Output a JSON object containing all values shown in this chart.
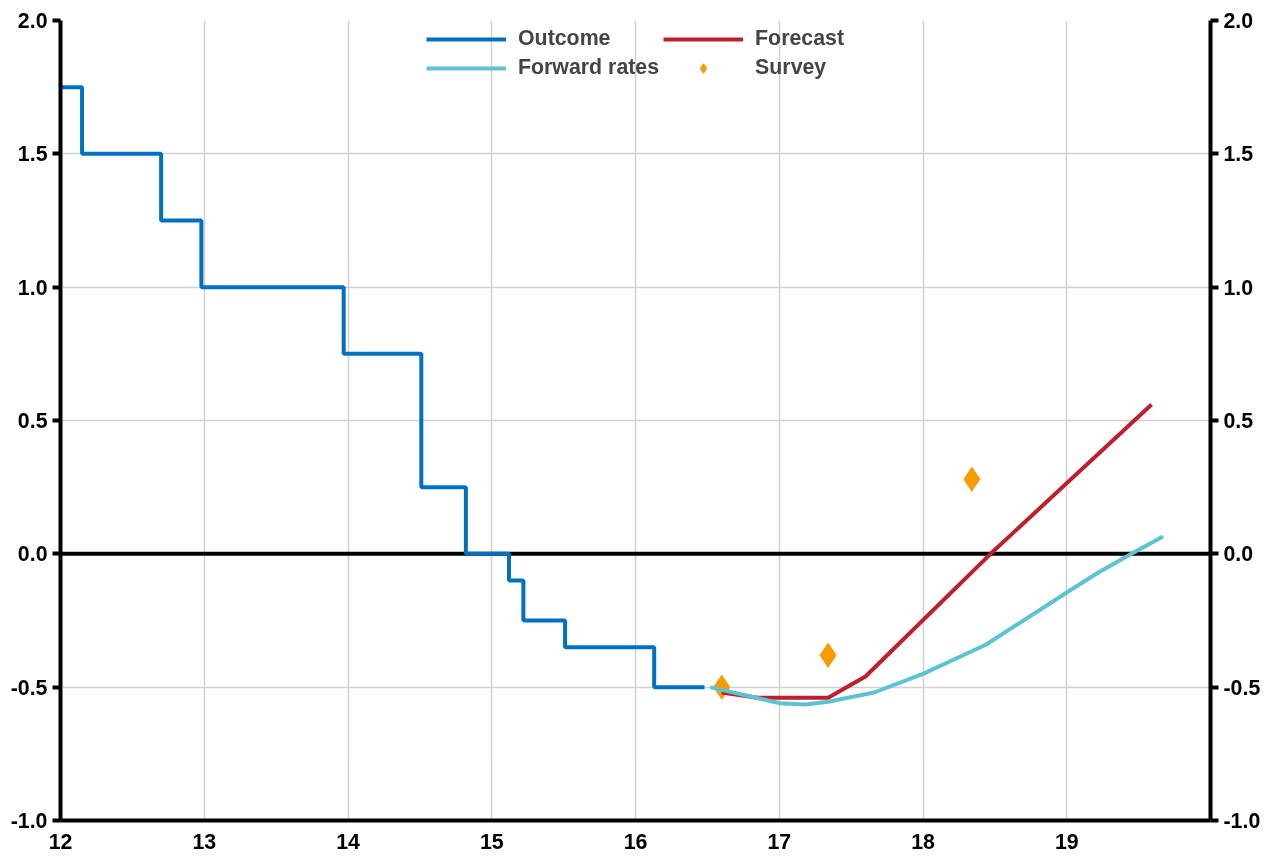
{
  "chart_data": {
    "type": "line",
    "xlim": [
      12,
      20
    ],
    "xticks": [
      12,
      13,
      14,
      15,
      16,
      17,
      18,
      19
    ],
    "ylim": [
      -1.0,
      2.0
    ],
    "yticks": [
      {
        "value": -1.0,
        "label": "-1.0"
      },
      {
        "value": -0.5,
        "label": "-0.5"
      },
      {
        "value": 0.0,
        "label": "0.0"
      },
      {
        "value": 0.5,
        "label": "0.5"
      },
      {
        "value": 1.0,
        "label": "1.0"
      },
      {
        "value": 1.5,
        "label": "1.5"
      },
      {
        "value": 2.0,
        "label": "2.0"
      }
    ],
    "y2lim": [
      -1.0,
      2.0
    ],
    "y2ticks": [
      {
        "value": -1.0,
        "label": "-1.0"
      },
      {
        "value": -0.5,
        "label": "-0.5"
      },
      {
        "value": 0.0,
        "label": "0.0"
      },
      {
        "value": 0.5,
        "label": "0.5"
      },
      {
        "value": 1.0,
        "label": "1.0"
      },
      {
        "value": 1.5,
        "label": "1.5"
      },
      {
        "value": 2.0,
        "label": "2.0"
      }
    ],
    "grid": true,
    "legend": "top",
    "ref_lines": [
      {
        "axis": "y",
        "value": 0,
        "color": "#000000"
      }
    ],
    "series": [
      {
        "name": "Outcome",
        "type": "step",
        "color": "#0070c0",
        "x": [
          12,
          12.15,
          12.7,
          12.98,
          13.97,
          14.51,
          14.82,
          15.12,
          15.22,
          15.51,
          16.13,
          16.48
        ],
        "values": [
          1.75,
          1.5,
          1.25,
          1.0,
          0.75,
          0.25,
          0,
          -0.1,
          -0.25,
          -0.35,
          -0.5,
          -0.5
        ]
      },
      {
        "name": "Forecast",
        "color": "#be1e2d",
        "x": [
          16.6,
          16.85,
          17.34,
          17.6,
          18.47,
          19.59
        ],
        "values": [
          -0.52,
          -0.54,
          -0.54,
          -0.46,
          0.0,
          0.56
        ]
      },
      {
        "name": "Forward rates",
        "color": "#5bc4d0",
        "x": [
          16.52,
          17.0,
          17.18,
          17.34,
          17.66,
          18.0,
          18.44,
          19.0,
          19.22,
          19.45,
          19.67
        ],
        "values": [
          -0.5,
          -0.56,
          -0.565,
          -0.555,
          -0.52,
          -0.45,
          -0.34,
          -0.145,
          -0.07,
          0.0,
          0.065
        ]
      },
      {
        "name": "Survey",
        "type": "scatter",
        "marker": "diamond",
        "color": "#f59c00",
        "x": [
          16.6,
          17.34,
          18.34
        ],
        "values": [
          -0.5,
          -0.38,
          0.28
        ]
      }
    ]
  }
}
